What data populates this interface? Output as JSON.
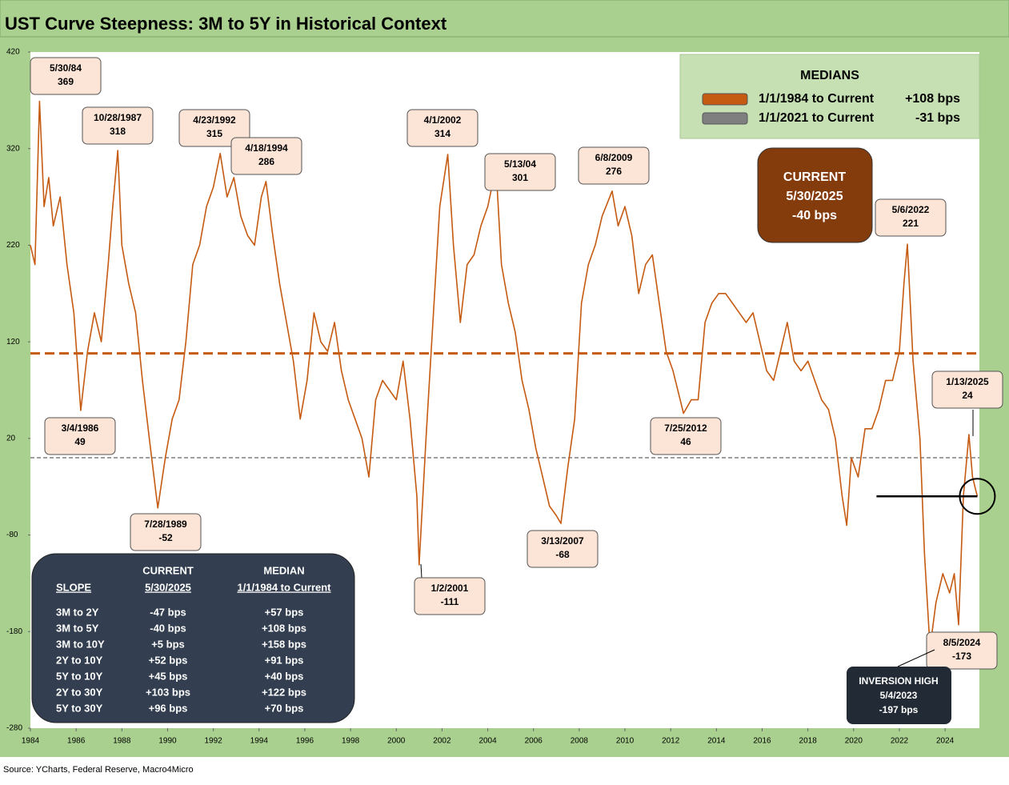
{
  "chart_data": {
    "type": "line",
    "title": "UST Curve Steepness: 3M to 5Y in Historical Context",
    "source": "Source: YCharts, Federal Reserve, Macro4Micro",
    "xlim": [
      1984,
      2025.5
    ],
    "xticks": [
      1984,
      1986,
      1988,
      1990,
      1992,
      1994,
      1996,
      1998,
      2000,
      2002,
      2004,
      2006,
      2008,
      2010,
      2012,
      2014,
      2016,
      2018,
      2020,
      2022,
      2024
    ],
    "ylim": [
      -280,
      420
    ],
    "yticks": [
      -280,
      -180,
      -80,
      20,
      120,
      220,
      320,
      420
    ],
    "series": [
      {
        "color": "#c55a11",
        "x": [
          1984.0,
          1984.2,
          1984.4,
          1984.6,
          1984.8,
          1985.0,
          1985.3,
          1985.6,
          1985.9,
          1986.2,
          1986.5,
          1986.8,
          1987.1,
          1987.4,
          1987.6,
          1987.82,
          1988.0,
          1988.3,
          1988.6,
          1988.9,
          1989.2,
          1989.57,
          1989.9,
          1990.2,
          1990.5,
          1990.8,
          1991.1,
          1991.4,
          1991.7,
          1992.0,
          1992.3,
          1992.6,
          1992.9,
          1993.2,
          1993.5,
          1993.8,
          1994.1,
          1994.3,
          1994.6,
          1994.9,
          1995.2,
          1995.5,
          1995.8,
          1996.1,
          1996.4,
          1996.7,
          1997.0,
          1997.3,
          1997.6,
          1997.9,
          1998.2,
          1998.5,
          1998.8,
          1999.1,
          1999.4,
          1999.7,
          2000.0,
          2000.3,
          2000.6,
          2000.9,
          2001.0,
          2001.3,
          2001.6,
          2001.9,
          2002.25,
          2002.5,
          2002.8,
          2003.1,
          2003.4,
          2003.7,
          2004.0,
          2004.36,
          2004.6,
          2004.9,
          2005.2,
          2005.5,
          2005.8,
          2006.1,
          2006.4,
          2006.7,
          2007.0,
          2007.2,
          2007.5,
          2007.8,
          2008.1,
          2008.4,
          2008.7,
          2009.0,
          2009.44,
          2009.7,
          2010.0,
          2010.3,
          2010.6,
          2010.9,
          2011.2,
          2011.5,
          2011.8,
          2012.1,
          2012.56,
          2012.9,
          2013.2,
          2013.5,
          2013.8,
          2014.1,
          2014.4,
          2014.7,
          2015.0,
          2015.3,
          2015.6,
          2015.9,
          2016.2,
          2016.5,
          2016.8,
          2017.1,
          2017.4,
          2017.7,
          2018.0,
          2018.3,
          2018.6,
          2018.9,
          2019.2,
          2019.5,
          2019.7,
          2019.9,
          2020.2,
          2020.5,
          2020.8,
          2021.1,
          2021.4,
          2021.7,
          2022.0,
          2022.2,
          2022.35,
          2022.6,
          2022.9,
          2023.1,
          2023.34,
          2023.6,
          2023.9,
          2024.2,
          2024.4,
          2024.59,
          2024.8,
          2025.04,
          2025.2,
          2025.41
        ],
        "values": [
          220,
          200,
          369,
          260,
          290,
          240,
          270,
          200,
          150,
          49,
          110,
          150,
          120,
          200,
          260,
          318,
          220,
          180,
          150,
          80,
          20,
          -52,
          0,
          40,
          60,
          120,
          200,
          220,
          260,
          280,
          315,
          270,
          290,
          250,
          230,
          220,
          270,
          286,
          230,
          180,
          140,
          100,
          40,
          80,
          150,
          120,
          110,
          140,
          90,
          60,
          40,
          20,
          -20,
          60,
          80,
          70,
          60,
          100,
          40,
          -40,
          -111,
          20,
          140,
          260,
          314,
          220,
          140,
          200,
          210,
          240,
          260,
          301,
          200,
          160,
          130,
          80,
          50,
          10,
          -20,
          -50,
          -60,
          -68,
          -10,
          40,
          160,
          200,
          220,
          250,
          276,
          240,
          260,
          230,
          170,
          200,
          210,
          160,
          110,
          90,
          46,
          60,
          60,
          140,
          160,
          170,
          170,
          160,
          150,
          140,
          150,
          120,
          90,
          80,
          110,
          140,
          100,
          90,
          100,
          80,
          60,
          50,
          20,
          -40,
          -70,
          0,
          -20,
          30,
          30,
          50,
          80,
          80,
          110,
          180,
          221,
          100,
          20,
          -100,
          -197,
          -150,
          -120,
          -140,
          -120,
          -173,
          -40,
          24,
          -20,
          -40
        ]
      }
    ],
    "reference_lines": [
      {
        "value": 108,
        "color": "#c55a11"
      },
      {
        "value": 0,
        "color": "#7f7f7f"
      }
    ],
    "current_line": {
      "value": -40,
      "x": [
        2021.0,
        2025.41
      ],
      "color": "#000000"
    },
    "legend": {
      "title": "MEDIANS",
      "entries": [
        {
          "label": "1/1/1984 to Current",
          "value": "+108 bps",
          "color": "#c55a11"
        },
        {
          "label": "1/1/2021 to Current",
          "value": "-31 bps",
          "color": "#7f7f7f"
        }
      ]
    },
    "current_box": [
      "CURRENT",
      "5/30/2025",
      "-40 bps"
    ],
    "inversion_box": [
      "INVERSION HIGH",
      "5/4/2023",
      "-197 bps"
    ],
    "annotations": [
      {
        "date": "5/30/84",
        "value": 369
      },
      {
        "date": "10/28/1987",
        "value": 318
      },
      {
        "date": "4/23/1992",
        "value": 315
      },
      {
        "date": "4/18/1994",
        "value": 286
      },
      {
        "date": "4/1/2002",
        "value": 314
      },
      {
        "date": "5/13/04",
        "value": 301
      },
      {
        "date": "6/8/2009",
        "value": 276
      },
      {
        "date": "5/6/2022",
        "value": 221
      },
      {
        "date": "1/13/2025",
        "value": 24
      },
      {
        "date": "3/4/1986",
        "value": 49
      },
      {
        "date": "7/25/2012",
        "value": 46
      },
      {
        "date": "7/28/1989",
        "value": -52
      },
      {
        "date": "1/2/2001",
        "value": -111
      },
      {
        "date": "3/13/2007",
        "value": -68
      },
      {
        "date": "8/5/2024",
        "value": -173
      }
    ],
    "table": {
      "header1": [
        "",
        "CURRENT",
        "MEDIAN"
      ],
      "header2": [
        "SLOPE",
        "5/30/2025",
        "1/1/1984 to Current"
      ],
      "rows": [
        [
          "3M to 2Y",
          "-47 bps",
          "+57 bps"
        ],
        [
          "3M to 5Y",
          "-40 bps",
          "+108 bps"
        ],
        [
          "3M to 10Y",
          "+5 bps",
          "+158 bps"
        ],
        [
          "2Y to 10Y",
          "+52 bps",
          "+91 bps"
        ],
        [
          "5Y to 10Y",
          "+45 bps",
          "+40 bps"
        ],
        [
          "2Y to 30Y",
          "+103 bps",
          "+122 bps"
        ],
        [
          "5Y to 30Y",
          "+96 bps",
          "+70 bps"
        ]
      ]
    }
  }
}
